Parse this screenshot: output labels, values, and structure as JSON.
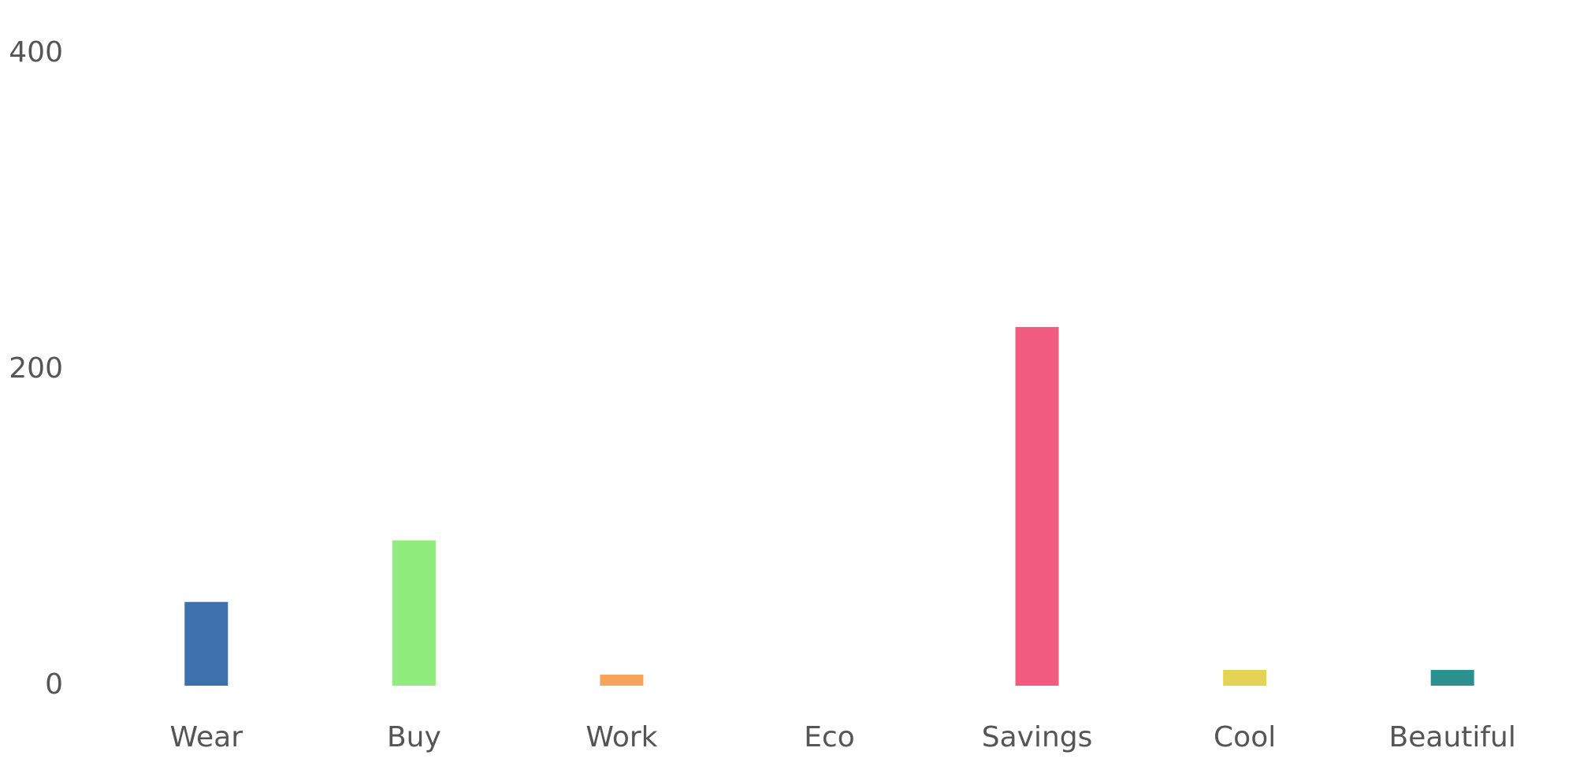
{
  "chart_data": {
    "type": "bar",
    "categories": [
      "Wear",
      "Buy",
      "Work",
      "Eco",
      "Savings",
      "Cool",
      "Beautiful"
    ],
    "values": [
      53,
      92,
      7,
      0,
      227,
      10,
      10
    ],
    "colors": [
      "#3d70ad",
      "#90ec7d",
      "#f7a35c",
      "#8085e9",
      "#f15c80",
      "#e4d354",
      "#2b908f"
    ],
    "ylim": [
      0,
      400
    ],
    "yticks": [
      0,
      200,
      400
    ],
    "grid": false
  }
}
